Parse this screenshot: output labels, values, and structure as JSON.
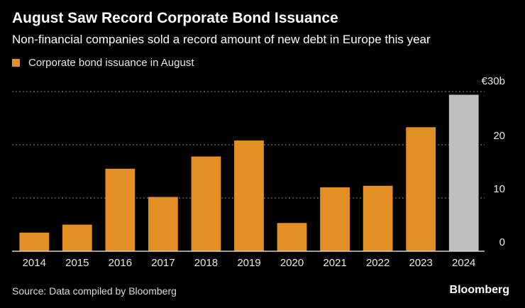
{
  "title": "August Saw Record Corporate Bond Issuance",
  "subtitle": "Non-financial companies sold a record amount of new debt in Europe this year",
  "source": "Source: Data compiled by Bloomberg",
  "brand": "Bloomberg",
  "colors": {
    "bar": "#e38f24",
    "highlight": "#c0c0c0",
    "grid": "#8a8a8a",
    "axis": "#cfcfcf",
    "text": "#e6e6e6"
  },
  "chart_data": {
    "type": "bar",
    "categories": [
      "2014",
      "2015",
      "2016",
      "2017",
      "2018",
      "2019",
      "2020",
      "2021",
      "2022",
      "2023",
      "2024"
    ],
    "series": [
      {
        "name": "Corporate bond issuance in August",
        "values": [
          3.5,
          5.0,
          15.5,
          10.2,
          17.8,
          20.8,
          5.3,
          12.0,
          12.3,
          23.3,
          29.4
        ]
      }
    ],
    "highlight_category": "2024",
    "ylim": [
      0,
      30
    ],
    "yticks": [
      0,
      10,
      20,
      30
    ],
    "ytick_labels": [
      "0",
      "10",
      "20",
      "€30b"
    ],
    "grid": true,
    "legend": "top-left"
  }
}
